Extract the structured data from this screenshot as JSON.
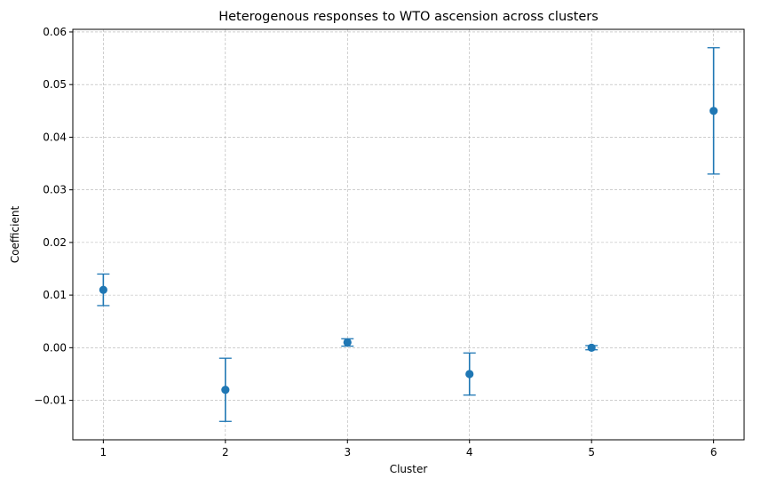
{
  "chart_data": {
    "type": "scatter",
    "title": "Heterogenous responses to WTO ascension across clusters",
    "xlabel": "Cluster",
    "ylabel": "Coefficient",
    "x": [
      1,
      2,
      3,
      4,
      5,
      6
    ],
    "y": [
      0.011,
      -0.008,
      0.001,
      -0.005,
      0.0,
      0.045
    ],
    "err_low": [
      0.008,
      -0.014,
      0.0003,
      -0.009,
      -0.0004,
      0.033
    ],
    "err_high": [
      0.014,
      -0.002,
      0.0017,
      -0.001,
      0.0004,
      0.057
    ],
    "xlim": [
      0.75,
      6.25
    ],
    "ylim": [
      -0.0175,
      0.0605
    ],
    "xticks": [
      1,
      2,
      3,
      4,
      5,
      6
    ],
    "yticks": [
      -0.01,
      0.0,
      0.01,
      0.02,
      0.03,
      0.04,
      0.05,
      0.06
    ],
    "ytick_labels": [
      "−0.01",
      "0.00",
      "0.01",
      "0.02",
      "0.03",
      "0.04",
      "0.05",
      "0.06"
    ],
    "grid": true,
    "color": "#1f77b4"
  }
}
